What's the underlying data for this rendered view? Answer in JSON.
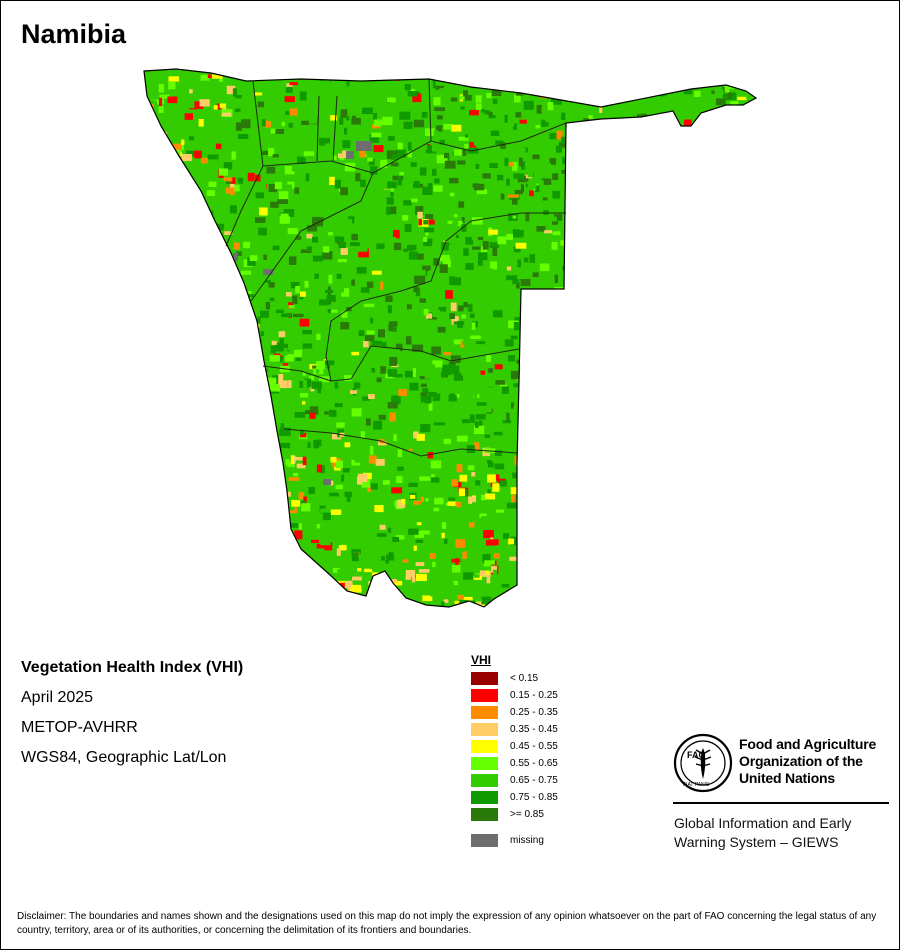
{
  "map": {
    "title": "Namibia",
    "info_lines": [
      "Vegetation Health Index (VHI)",
      "April 2025",
      "METOP-AVHRR",
      "WGS84, Geographic Lat/Lon"
    ]
  },
  "legend": {
    "title": "VHI",
    "items": [
      {
        "label": "< 0.15",
        "color": "#990000"
      },
      {
        "label": "0.15 - 0.25",
        "color": "#ff0000"
      },
      {
        "label": "0.25 - 0.35",
        "color": "#ff8c00"
      },
      {
        "label": "0.35 - 0.45",
        "color": "#ffcc66"
      },
      {
        "label": "0.45 - 0.55",
        "color": "#ffff00"
      },
      {
        "label": "0.55 - 0.65",
        "color": "#66ff00"
      },
      {
        "label": "0.65 - 0.75",
        "color": "#33cc00"
      },
      {
        "label": "0.75 - 0.85",
        "color": "#119900"
      },
      {
        "label": ">= 0.85",
        "color": "#2a7a0a"
      }
    ],
    "missing": {
      "label": "missing",
      "color": "#6e6e6e"
    }
  },
  "branding": {
    "logo_icon": "fao-emblem-icon",
    "logo_text": "FAO",
    "logo_motto": "FIAT PANIS",
    "org_name": "Food and Agriculture Organization of the United Nations",
    "system_name": "Global Information and Early Warning System – GIEWS"
  },
  "disclaimer": "Disclaimer: The boundaries and names shown and the designations used on this map do not imply the expression of any opinion whatsoever on the part of FAO concerning the legal status of any country, territory, area or of its authorities, or concerning the delimitation of its frontiers and boundaries."
}
